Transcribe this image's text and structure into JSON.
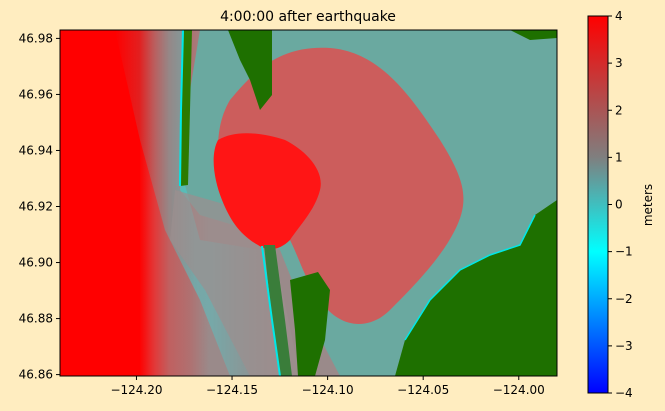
{
  "chart_data": {
    "type": "heatmap",
    "title": "4:00:00 after earthquake",
    "xlabel": "",
    "ylabel": "",
    "xlim": [
      -124.24,
      -123.98
    ],
    "ylim": [
      46.8595,
      46.983
    ],
    "x_ticks": [
      {
        "value": -124.2,
        "label": "−124.20"
      },
      {
        "value": -124.15,
        "label": "−124.15"
      },
      {
        "value": -124.1,
        "label": "−124.10"
      },
      {
        "value": -124.05,
        "label": "−124.05"
      },
      {
        "value": -124.0,
        "label": "−124.00"
      }
    ],
    "y_ticks": [
      {
        "value": 46.86,
        "label": "46.86"
      },
      {
        "value": 46.88,
        "label": "46.88"
      },
      {
        "value": 46.9,
        "label": "46.90"
      },
      {
        "value": 46.92,
        "label": "46.92"
      },
      {
        "value": 46.94,
        "label": "46.94"
      },
      {
        "value": 46.96,
        "label": "46.96"
      },
      {
        "value": 46.98,
        "label": "46.98"
      }
    ],
    "colorbar": {
      "label": "meters",
      "range": [
        -4,
        4
      ],
      "ticks": [
        {
          "value": 4,
          "label": "4"
        },
        {
          "value": 3,
          "label": "3"
        },
        {
          "value": 2,
          "label": "2"
        },
        {
          "value": 1,
          "label": "1"
        },
        {
          "value": 0,
          "label": "0"
        },
        {
          "value": -1,
          "label": "−1"
        },
        {
          "value": -2,
          "label": "−2"
        },
        {
          "value": -3,
          "label": "−3"
        },
        {
          "value": -4,
          "label": "−4"
        }
      ],
      "colormap": [
        "#0000ff",
        "#00ffff",
        "#7f7f7f",
        "#ff0000"
      ]
    },
    "colors": {
      "land": "#1e7000",
      "offshore_wave": "#ff0000",
      "bay_water": "#6aa9a0",
      "inundation": "#d85a5a",
      "shoreline": "#00e8e8"
    }
  }
}
